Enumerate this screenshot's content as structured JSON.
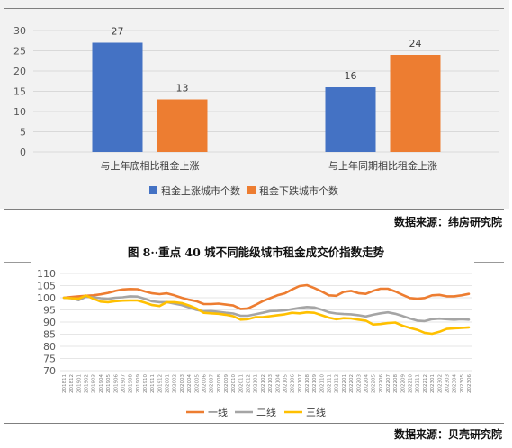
{
  "chart_data": [
    {
      "type": "bar",
      "title": "",
      "categories": [
        "与上年底相比租金上涨",
        "与上年同期相比租金上涨"
      ],
      "series": [
        {
          "name": "租金上涨城市个数",
          "values": [
            27,
            16
          ],
          "color": "#4472c4"
        },
        {
          "name": "租金下跌城市个数",
          "values": [
            13,
            24
          ],
          "color": "#ed7d31"
        }
      ],
      "ylim": [
        0,
        30
      ],
      "yticks": [
        0,
        5,
        10,
        15,
        20,
        25,
        30
      ],
      "grid": true,
      "legend": "bottom",
      "source": "数据来源：纬房研究院"
    },
    {
      "type": "line",
      "title": "图 8··重点 40 城不同能级城市租金成交价指数走势",
      "x": [
        "201811",
        "201812",
        "201901",
        "201902",
        "201903",
        "201904",
        "201905",
        "201906",
        "201907",
        "201908",
        "201909",
        "201910",
        "201911",
        "201912",
        "202001",
        "202002",
        "202003",
        "202004",
        "202005",
        "202006",
        "202007",
        "202008",
        "202009",
        "202010",
        "202011",
        "202012",
        "202101",
        "202102",
        "202103",
        "202104",
        "202105",
        "202106",
        "202107",
        "202108",
        "202109",
        "202110",
        "202111",
        "202112",
        "202201",
        "202202",
        "202203",
        "202204",
        "202205",
        "202206",
        "202207",
        "202208",
        "202209",
        "202210",
        "202211",
        "202212",
        "202301",
        "202302",
        "202303",
        "202304",
        "202305",
        "202306"
      ],
      "series": [
        {
          "name": "一线",
          "color": "#ed7d31",
          "values": [
            100.0,
            100.3,
            100.6,
            100.8,
            101.0,
            101.4,
            102.0,
            102.8,
            103.4,
            103.6,
            103.5,
            102.6,
            101.8,
            101.5,
            101.8,
            101.0,
            100.0,
            99.2,
            98.6,
            97.4,
            97.4,
            97.6,
            97.2,
            96.8,
            95.4,
            95.6,
            97.0,
            98.6,
            99.8,
            101.0,
            101.8,
            103.4,
            104.8,
            105.2,
            104.0,
            102.6,
            101.0,
            100.8,
            102.4,
            102.8,
            101.9,
            101.6,
            102.8,
            103.7,
            103.7,
            102.6,
            101.2,
            99.9,
            99.6,
            99.9,
            101.0,
            101.2,
            100.6,
            100.6,
            101.0,
            101.6
          ]
        },
        {
          "name": "二线",
          "color": "#a5a5a5",
          "values": [
            100.0,
            99.8,
            99.0,
            100.4,
            100.2,
            99.8,
            99.6,
            100.0,
            100.2,
            100.6,
            100.5,
            99.6,
            98.5,
            98.2,
            98.2,
            97.6,
            97.0,
            96.0,
            95.0,
            94.4,
            94.5,
            94.2,
            93.8,
            93.5,
            92.6,
            92.6,
            93.2,
            93.8,
            94.5,
            94.6,
            94.8,
            95.3,
            95.8,
            96.2,
            96.0,
            95.1,
            94.0,
            93.5,
            93.3,
            93.2,
            92.8,
            92.3,
            93.0,
            93.6,
            94.0,
            93.4,
            92.5,
            91.5,
            90.6,
            90.4,
            91.2,
            91.4,
            91.2,
            91.0,
            91.2,
            91.0
          ]
        },
        {
          "name": "三线",
          "color": "#ffc000",
          "values": [
            100.0,
            99.8,
            99.6,
            100.9,
            99.6,
            98.4,
            98.2,
            98.6,
            98.8,
            98.9,
            98.9,
            98.0,
            97.0,
            96.6,
            98.2,
            98.2,
            97.8,
            96.8,
            95.6,
            93.8,
            93.6,
            93.4,
            93.0,
            92.4,
            91.0,
            91.2,
            92.0,
            92.0,
            92.4,
            92.8,
            93.2,
            93.8,
            93.6,
            94.0,
            93.8,
            92.8,
            91.8,
            91.2,
            91.6,
            91.5,
            91.0,
            90.6,
            89.0,
            89.2,
            89.6,
            89.8,
            88.5,
            87.6,
            86.8,
            85.6,
            85.2,
            86.0,
            87.2,
            87.4,
            87.6,
            87.8
          ]
        }
      ],
      "ylim": [
        70,
        110
      ],
      "yticks": [
        70,
        75,
        80,
        85,
        90,
        95,
        100,
        105,
        110
      ],
      "grid": true,
      "legend": "bottom",
      "source": "数据来源：贝壳研究院"
    }
  ]
}
